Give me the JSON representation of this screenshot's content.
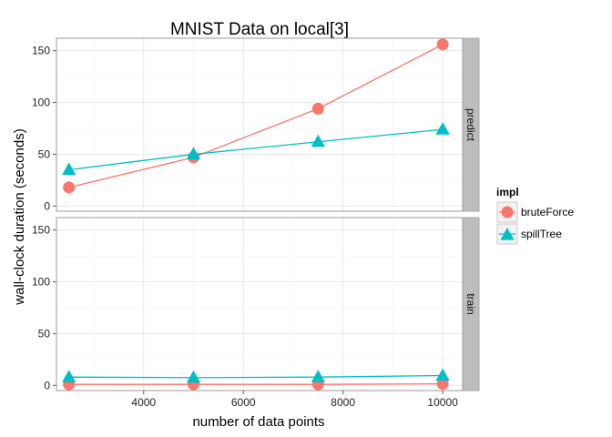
{
  "chart_data": {
    "type": "line",
    "title": "MNIST Data on local[3]",
    "xlabel": "number of data points",
    "ylabel": "wall-clock duration (seconds)",
    "x": [
      2500,
      5000,
      7500,
      10000
    ],
    "xlim": [
      2250,
      10400
    ],
    "ylim": [
      -5,
      162
    ],
    "xticks": [
      4000,
      6000,
      8000,
      10000
    ],
    "yticks": [
      0,
      50,
      100,
      150
    ],
    "grid": true,
    "legend": {
      "title": "impl",
      "placement": "right"
    },
    "series": [
      {
        "name": "bruteForce",
        "color": "#F8766D",
        "marker": "circle"
      },
      {
        "name": "spillTree",
        "color": "#00BFC4",
        "marker": "triangle"
      }
    ],
    "facets": [
      {
        "label": "predict",
        "series_values": {
          "bruteForce": [
            18,
            47,
            94,
            156
          ],
          "spillTree": [
            35,
            50,
            62,
            74
          ]
        }
      },
      {
        "label": "train",
        "series_values": {
          "bruteForce": [
            1,
            1,
            1,
            1.5
          ],
          "spillTree": [
            8,
            7.5,
            8,
            9.5
          ]
        }
      }
    ]
  }
}
